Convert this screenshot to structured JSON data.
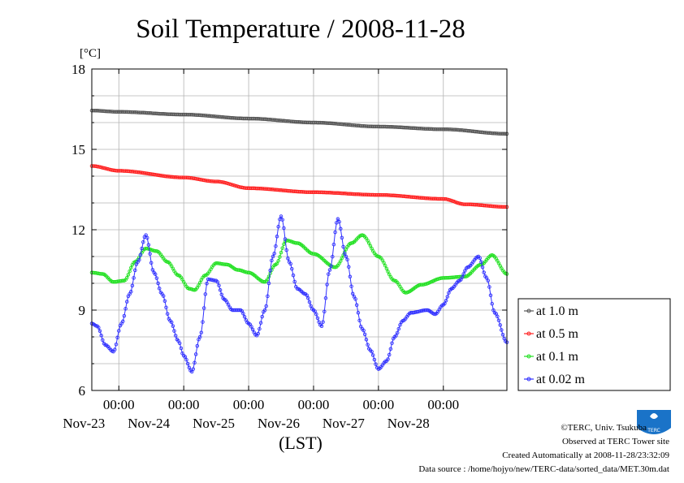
{
  "chart_data": {
    "type": "line",
    "title": "Soil Temperature / 2008-11-28",
    "ylabel": "[°C]",
    "xlabel": "(LST)",
    "ylim": [
      6,
      18
    ],
    "yticks": [
      6,
      9,
      12,
      15,
      18
    ],
    "xlim": [
      "2008-11-22 14:00",
      "2008-11-28 23:30"
    ],
    "xticks": [
      {
        "time": "2008-11-23 00:00",
        "label": "00:00",
        "date_label": "Nov-23"
      },
      {
        "time": "2008-11-24 00:00",
        "label": "00:00",
        "date_label": "Nov-24"
      },
      {
        "time": "2008-11-25 00:00",
        "label": "00:00",
        "date_label": "Nov-25"
      },
      {
        "time": "2008-11-26 00:00",
        "label": "00:00",
        "date_label": "Nov-26"
      },
      {
        "time": "2008-11-27 00:00",
        "label": "00:00",
        "date_label": "Nov-27"
      },
      {
        "time": "2008-11-28 00:00",
        "label": "00:00",
        "date_label": "Nov-28"
      }
    ],
    "grid": true,
    "legend_position": "right",
    "series": [
      {
        "name": "at 1.0 m",
        "color": "#555555",
        "points": [
          [
            "2008-11-22 14:00",
            16.45
          ],
          [
            "2008-11-23 00:00",
            16.4
          ],
          [
            "2008-11-24 00:00",
            16.3
          ],
          [
            "2008-11-25 00:00",
            16.15
          ],
          [
            "2008-11-26 00:00",
            16.0
          ],
          [
            "2008-11-27 00:00",
            15.85
          ],
          [
            "2008-11-28 00:00",
            15.75
          ],
          [
            "2008-11-28 23:30",
            15.58
          ]
        ]
      },
      {
        "name": "at 0.5 m",
        "color": "#ff2020",
        "points": [
          [
            "2008-11-22 14:00",
            14.38
          ],
          [
            "2008-11-23 00:00",
            14.2
          ],
          [
            "2008-11-24 00:00",
            13.95
          ],
          [
            "2008-11-24 12:00",
            13.8
          ],
          [
            "2008-11-25 00:00",
            13.55
          ],
          [
            "2008-11-26 00:00",
            13.4
          ],
          [
            "2008-11-27 00:00",
            13.3
          ],
          [
            "2008-11-28 00:00",
            13.15
          ],
          [
            "2008-11-28 08:00",
            12.95
          ],
          [
            "2008-11-28 23:30",
            12.85
          ]
        ]
      },
      {
        "name": "at 0.1 m",
        "color": "#20e020",
        "points": [
          [
            "2008-11-22 14:00",
            10.4
          ],
          [
            "2008-11-22 18:00",
            10.35
          ],
          [
            "2008-11-22 22:00",
            10.05
          ],
          [
            "2008-11-23 02:00",
            10.1
          ],
          [
            "2008-11-23 06:00",
            10.8
          ],
          [
            "2008-11-23 10:00",
            11.3
          ],
          [
            "2008-11-23 14:00",
            11.2
          ],
          [
            "2008-11-23 18:00",
            10.8
          ],
          [
            "2008-11-23 22:00",
            10.3
          ],
          [
            "2008-11-24 02:00",
            9.8
          ],
          [
            "2008-11-24 04:00",
            9.75
          ],
          [
            "2008-11-24 08:00",
            10.3
          ],
          [
            "2008-11-24 12:00",
            10.75
          ],
          [
            "2008-11-24 16:00",
            10.7
          ],
          [
            "2008-11-24 20:00",
            10.5
          ],
          [
            "2008-11-25 00:00",
            10.4
          ],
          [
            "2008-11-25 06:00",
            10.05
          ],
          [
            "2008-11-25 10:00",
            10.7
          ],
          [
            "2008-11-25 14:00",
            11.6
          ],
          [
            "2008-11-25 18:00",
            11.5
          ],
          [
            "2008-11-26 00:00",
            11.1
          ],
          [
            "2008-11-26 08:00",
            10.6
          ],
          [
            "2008-11-26 14:00",
            11.5
          ],
          [
            "2008-11-26 18:00",
            11.8
          ],
          [
            "2008-11-27 00:00",
            11.0
          ],
          [
            "2008-11-27 06:00",
            10.1
          ],
          [
            "2008-11-27 10:00",
            9.65
          ],
          [
            "2008-11-27 16:00",
            9.95
          ],
          [
            "2008-11-28 00:00",
            10.2
          ],
          [
            "2008-11-28 08:00",
            10.25
          ],
          [
            "2008-11-28 14:00",
            10.7
          ],
          [
            "2008-11-28 18:00",
            11.05
          ],
          [
            "2008-11-28 23:30",
            10.35
          ]
        ]
      },
      {
        "name": "at 0.02 m",
        "color": "#3030ff",
        "points": [
          [
            "2008-11-22 14:00",
            8.5
          ],
          [
            "2008-11-22 16:00",
            8.4
          ],
          [
            "2008-11-22 19:00",
            7.7
          ],
          [
            "2008-11-22 22:00",
            7.45
          ],
          [
            "2008-11-23 01:00",
            8.5
          ],
          [
            "2008-11-23 04:00",
            9.6
          ],
          [
            "2008-11-23 07:00",
            10.8
          ],
          [
            "2008-11-23 10:00",
            11.8
          ],
          [
            "2008-11-23 13:00",
            10.4
          ],
          [
            "2008-11-23 16:00",
            9.6
          ],
          [
            "2008-11-23 19:00",
            8.6
          ],
          [
            "2008-11-23 22:00",
            7.85
          ],
          [
            "2008-11-24 00:00",
            7.3
          ],
          [
            "2008-11-24 03:00",
            6.7
          ],
          [
            "2008-11-24 06:00",
            8.0
          ],
          [
            "2008-11-24 09:00",
            10.15
          ],
          [
            "2008-11-24 12:00",
            10.1
          ],
          [
            "2008-11-24 15:00",
            9.4
          ],
          [
            "2008-11-24 18:00",
            9.0
          ],
          [
            "2008-11-24 21:00",
            9.0
          ],
          [
            "2008-11-25 00:00",
            8.5
          ],
          [
            "2008-11-25 03:00",
            8.05
          ],
          [
            "2008-11-25 06:00",
            9.0
          ],
          [
            "2008-11-25 09:00",
            11.0
          ],
          [
            "2008-11-25 12:00",
            12.5
          ],
          [
            "2008-11-25 15:00",
            10.8
          ],
          [
            "2008-11-25 18:00",
            9.8
          ],
          [
            "2008-11-25 21:00",
            9.6
          ],
          [
            "2008-11-26 00:00",
            9.0
          ],
          [
            "2008-11-26 03:00",
            8.4
          ],
          [
            "2008-11-26 06:00",
            10.5
          ],
          [
            "2008-11-26 09:00",
            12.4
          ],
          [
            "2008-11-26 12:00",
            11.0
          ],
          [
            "2008-11-26 15:00",
            9.5
          ],
          [
            "2008-11-26 18:00",
            8.3
          ],
          [
            "2008-11-26 21:00",
            7.5
          ],
          [
            "2008-11-27 00:00",
            6.8
          ],
          [
            "2008-11-27 03:00",
            7.1
          ],
          [
            "2008-11-27 06:00",
            8.0
          ],
          [
            "2008-11-27 09:00",
            8.6
          ],
          [
            "2008-11-27 12:00",
            8.9
          ],
          [
            "2008-11-27 18:00",
            9.0
          ],
          [
            "2008-11-27 21:00",
            8.85
          ],
          [
            "2008-11-28 00:00",
            9.2
          ],
          [
            "2008-11-28 03:00",
            9.8
          ],
          [
            "2008-11-28 06:00",
            10.1
          ],
          [
            "2008-11-28 09:00",
            10.6
          ],
          [
            "2008-11-28 13:00",
            11.0
          ],
          [
            "2008-11-28 16:00",
            10.2
          ],
          [
            "2008-11-28 19:00",
            8.9
          ],
          [
            "2008-11-28 23:30",
            7.8
          ]
        ]
      }
    ]
  },
  "logo": {
    "text": "TERC",
    "color": "#1a73c8"
  },
  "footer": {
    "credit": "©TERC, Univ. Tsukuba",
    "observed": "Observed at TERC Tower site",
    "created": "Created Automatically at 2008-11-28/23:32:09",
    "source": "Data source : /home/hojyo/new/TERC-data/sorted_data/MET.30m.dat"
  }
}
